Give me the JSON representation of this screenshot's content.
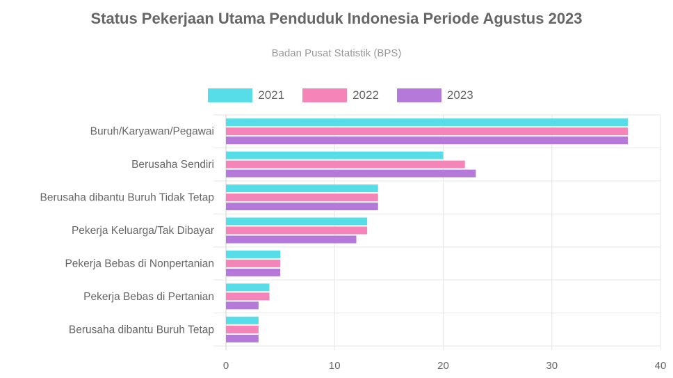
{
  "chart_data": {
    "type": "bar",
    "orientation": "horizontal",
    "title": "Status Pekerjaan Utama Penduduk Indonesia Periode Agustus 2023",
    "subtitle": "Badan Pusat Statistik (BPS)",
    "categories": [
      "Buruh/Karyawan/Pegawai",
      "Berusaha Sendiri",
      "Berusaha dibantu Buruh Tidak Tetap",
      "Pekerja Keluarga/Tak Dibayar",
      "Pekerja Bebas di Nonpertanian",
      "Pekerja Bebas di Pertanian",
      "Berusaha dibantu Buruh Tetap"
    ],
    "series": [
      {
        "name": "2021",
        "color": "#57dde8",
        "values": [
          37,
          20,
          14,
          13,
          5,
          4,
          3
        ]
      },
      {
        "name": "2022",
        "color": "#f584b8",
        "values": [
          37,
          22,
          14,
          13,
          5,
          4,
          3
        ]
      },
      {
        "name": "2023",
        "color": "#b479d9",
        "values": [
          37,
          23,
          14,
          12,
          5,
          3,
          3
        ]
      }
    ],
    "xlim": [
      0,
      40
    ],
    "xticks": [
      "0",
      "10",
      "20",
      "30",
      "40"
    ],
    "grid": true,
    "legend_position": "top"
  }
}
